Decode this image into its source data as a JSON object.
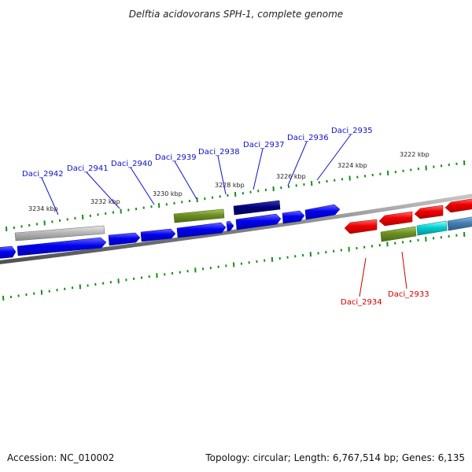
{
  "title": "Delftia acidovorans SPH-1, complete genome",
  "footer": {
    "accession": "Accession: NC_010002",
    "summary": "Topology: circular; Length: 6,767,514 bp; Genes: 6,135"
  },
  "colors": {
    "forward_cds": "#0000ee",
    "reverse_cds": "#ee0000",
    "olive": "#6b8e23",
    "navy": "#000080",
    "gray": "#b0b0b0",
    "cyan": "#00cccc",
    "steelblue": "#4682b4",
    "tick": "#1a8c1a",
    "backbone": "#808080"
  },
  "gene_labels_top": [
    "Daci_2942",
    "Daci_2941",
    "Daci_2940",
    "Daci_2939",
    "Daci_2938",
    "Daci_2937",
    "Daci_2936",
    "Daci_2935"
  ],
  "gene_labels_bottom": [
    "Daci_2934",
    "Daci_2933"
  ],
  "kbp_labels": [
    "3234 kbp",
    "3232 kbp",
    "3230 kbp",
    "3228 kbp",
    "3226 kbp",
    "3224 kbp",
    "3222 kbp"
  ]
}
